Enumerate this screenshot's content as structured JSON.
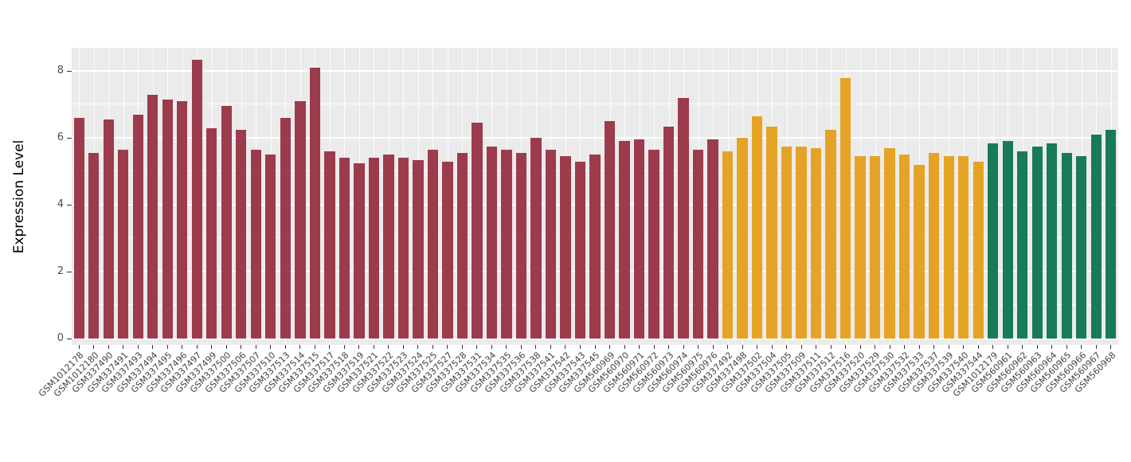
{
  "chart_data": {
    "type": "bar",
    "title": "",
    "xlabel": "",
    "ylabel": "Expression Level",
    "ylim": [
      0,
      8.7
    ],
    "yticks": [
      0,
      2,
      4,
      6,
      8
    ],
    "yticks_minor": [
      1,
      3,
      5,
      7
    ],
    "panel_background": "#EBEBEB",
    "gridline_color": "#FFFFFF",
    "legend": "none",
    "groups": [
      {
        "name": "group-1",
        "color": "#9C3B4C",
        "categories": [
          "GSM1012178",
          "GSM1012180",
          "GSM337490",
          "GSM337491",
          "GSM337493",
          "GSM337494",
          "GSM337495",
          "GSM337496",
          "GSM337497",
          "GSM337499",
          "GSM337500",
          "GSM337506",
          "GSM337507",
          "GSM337510",
          "GSM337513",
          "GSM337514",
          "GSM337515",
          "GSM337517",
          "GSM337518",
          "GSM337519",
          "GSM337521",
          "GSM337522",
          "GSM337523",
          "GSM337524",
          "GSM337525",
          "GSM337527",
          "GSM337528",
          "GSM337531",
          "GSM337534",
          "GSM337535",
          "GSM337536",
          "GSM337538",
          "GSM337541",
          "GSM337542",
          "GSM337543",
          "GSM337545",
          "GSM560969",
          "GSM560970",
          "GSM560971",
          "GSM560972",
          "GSM560973",
          "GSM560974",
          "GSM560975",
          "GSM560976"
        ],
        "values": [
          6.6,
          5.55,
          6.55,
          5.65,
          6.7,
          7.3,
          7.15,
          7.1,
          8.35,
          6.3,
          6.95,
          6.25,
          5.65,
          5.5,
          6.6,
          7.1,
          8.1,
          5.6,
          5.4,
          5.25,
          5.4,
          5.5,
          5.4,
          5.35,
          5.65,
          5.3,
          5.55,
          6.45,
          5.75,
          5.65,
          5.55,
          6.0,
          5.65,
          5.45,
          5.3,
          5.5,
          6.5,
          5.9,
          5.95,
          5.65,
          6.35,
          7.2,
          5.65,
          5.95
        ]
      },
      {
        "name": "group-2",
        "color": "#E5A326",
        "categories": [
          "GSM337492",
          "GSM337498",
          "GSM337502",
          "GSM337504",
          "GSM337505",
          "GSM337509",
          "GSM337511",
          "GSM337512",
          "GSM337516",
          "GSM337520",
          "GSM337529",
          "GSM337530",
          "GSM337532",
          "GSM337533",
          "GSM337537",
          "GSM337539",
          "GSM337540",
          "GSM337544"
        ],
        "values": [
          5.6,
          6.0,
          6.65,
          6.35,
          5.75,
          5.75,
          5.7,
          6.25,
          7.8,
          5.45,
          5.45,
          5.7,
          5.5,
          5.2,
          5.55,
          5.45,
          5.45,
          5.3
        ]
      },
      {
        "name": "group-3",
        "color": "#177B57",
        "categories": [
          "GSM1012179",
          "GSM560961",
          "GSM560962",
          "GSM560963",
          "GSM560964",
          "GSM560965",
          "GSM560966",
          "GSM560967",
          "GSM560968"
        ],
        "values": [
          5.85,
          5.9,
          5.6,
          5.75,
          5.85,
          5.55,
          5.45,
          6.1,
          6.25
        ]
      }
    ]
  }
}
